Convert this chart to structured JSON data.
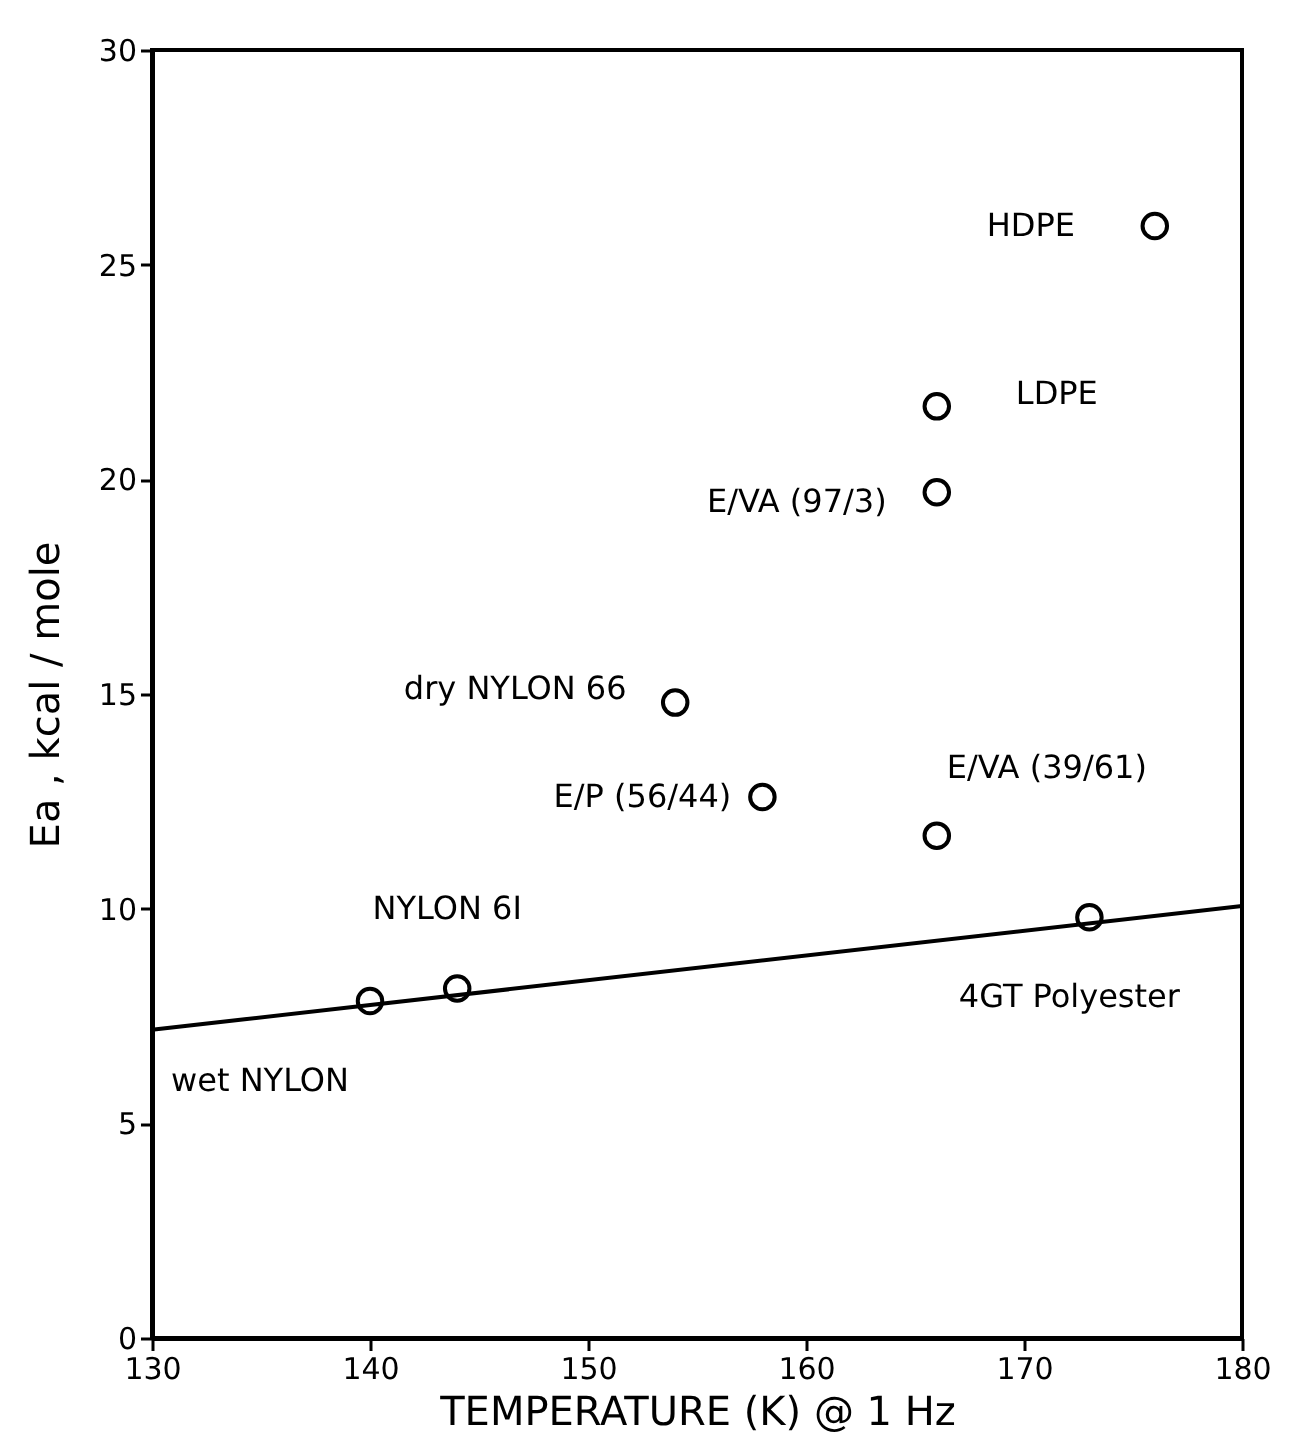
{
  "chart_data": {
    "type": "scatter",
    "xlabel": "TEMPERATURE (K) @ 1 Hz",
    "ylabel": "Ea , kcal / mole",
    "xlim": [
      130,
      180
    ],
    "xticks": [
      130,
      140,
      150,
      160,
      170,
      180
    ],
    "ylim": [
      0,
      30
    ],
    "yticks": [
      0,
      5,
      10,
      15,
      20,
      25,
      30
    ],
    "grid": false,
    "series": [
      {
        "color": "#000000",
        "marker": "circle",
        "x": [
          140,
          144,
          154,
          158,
          166,
          166,
          166,
          173,
          176
        ],
        "values": [
          7.85,
          8.14,
          14.8,
          12.6,
          19.7,
          21.7,
          11.7,
          9.8,
          25.9
        ]
      },
      {
        "type": "line",
        "color": "#000000",
        "x": [
          130,
          180
        ],
        "values": [
          7.18,
          10.06
        ]
      }
    ],
    "annotations": [
      {
        "text": "wet NYLON",
        "x": 140,
        "y": 7.85
      },
      {
        "text": "NYLON 6I",
        "x": 144,
        "y": 8.14
      },
      {
        "text": "dry NYLON 66",
        "x": 154,
        "y": 14.8
      },
      {
        "text": "E/P (56/44)",
        "x": 158,
        "y": 12.6
      },
      {
        "text": "E/VA (97/3)",
        "x": 166,
        "y": 19.7
      },
      {
        "text": "LDPE",
        "x": 166,
        "y": 21.7
      },
      {
        "text": "E/VA (39/61)",
        "x": 166,
        "y": 11.7
      },
      {
        "text": "4GT Polyester",
        "x": 173,
        "y": 9.8
      },
      {
        "text": "HDPE",
        "x": 176,
        "y": 25.9
      }
    ]
  }
}
